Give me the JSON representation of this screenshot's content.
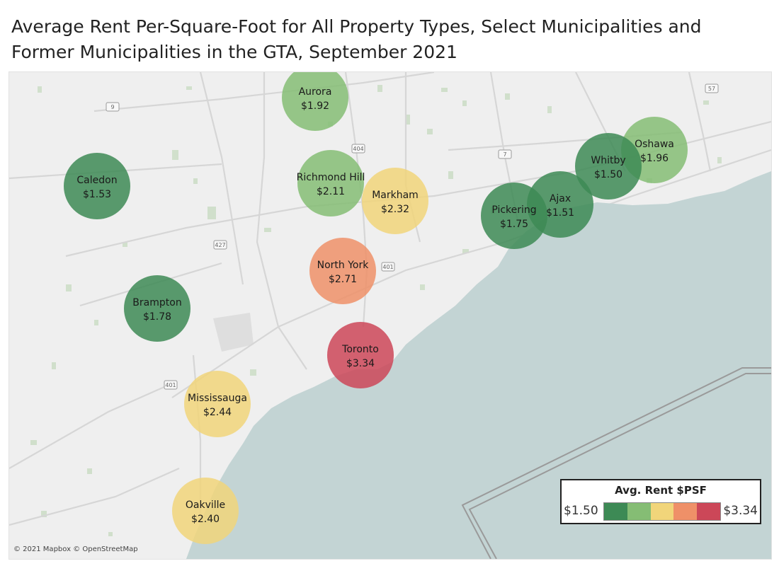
{
  "title": "Average Rent Per-Square-Foot for All Property Types, Select Municipalities and Former Municipalities in the GTA, September 2021",
  "map": {
    "attribution": "© 2021 Mapbox © OpenStreetMap",
    "road_labels": [
      "9",
      "404",
      "7",
      "57",
      "427",
      "401",
      "401"
    ],
    "colors": {
      "land": "#efefef",
      "water": "#c3d4d4"
    }
  },
  "legend": {
    "title": "Avg. Rent $PSF",
    "min_label": "$1.50",
    "max_label": "$3.34",
    "min": 1.5,
    "max": 3.34,
    "colors": [
      "#3d8a55",
      "#85bd74",
      "#f1d57a",
      "#ef9068",
      "#cc4758"
    ]
  },
  "locations": [
    {
      "name": "Aurora",
      "value_label": "$1.92",
      "value": 1.92,
      "color": "#85bd74"
    },
    {
      "name": "Caledon",
      "value_label": "$1.53",
      "value": 1.53,
      "color": "#3d8a55"
    },
    {
      "name": "Richmond Hill",
      "value_label": "$2.11",
      "value": 2.11,
      "color": "#85bd74"
    },
    {
      "name": "Markham",
      "value_label": "$2.32",
      "value": 2.32,
      "color": "#f1d57a"
    },
    {
      "name": "Oshawa",
      "value_label": "$1.96",
      "value": 1.96,
      "color": "#85bd74"
    },
    {
      "name": "Whitby",
      "value_label": "$1.50",
      "value": 1.5,
      "color": "#3d8a55"
    },
    {
      "name": "Ajax",
      "value_label": "$1.51",
      "value": 1.51,
      "color": "#3d8a55"
    },
    {
      "name": "Pickering",
      "value_label": "$1.75",
      "value": 1.75,
      "color": "#3d8a55"
    },
    {
      "name": "North York",
      "value_label": "$2.71",
      "value": 2.71,
      "color": "#ef9068"
    },
    {
      "name": "Brampton",
      "value_label": "$1.78",
      "value": 1.78,
      "color": "#3d8a55"
    },
    {
      "name": "Toronto",
      "value_label": "$3.34",
      "value": 3.34,
      "color": "#cc4758"
    },
    {
      "name": "Mississauga",
      "value_label": "$2.44",
      "value": 2.44,
      "color": "#f1d57a"
    },
    {
      "name": "Oakville",
      "value_label": "$2.40",
      "value": 2.4,
      "color": "#f1d57a"
    }
  ]
}
